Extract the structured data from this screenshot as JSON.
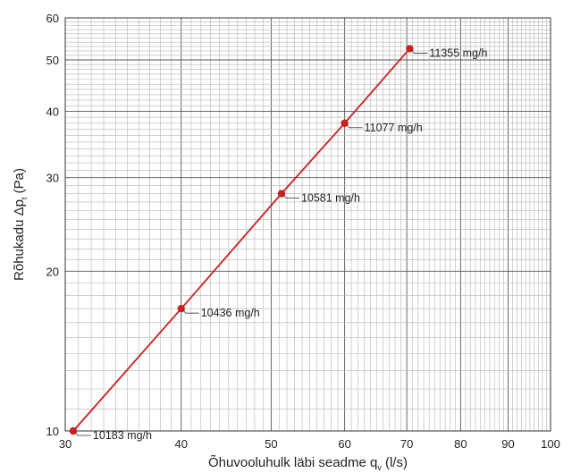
{
  "chart_data": {
    "type": "line",
    "xlabel": "Õhuvooluhulk läbi seadme q",
    "xlabel_sub": "v",
    "xlabel_unit": " (l/s)",
    "ylabel": "Rõhukadu Δp",
    "ylabel_sub": "t",
    "ylabel_unit": " (Pa)",
    "x_scale": "log",
    "y_scale": "log",
    "xlim": [
      30,
      100
    ],
    "ylim": [
      10,
      60
    ],
    "x_ticks": [
      30,
      40,
      50,
      60,
      70,
      80,
      90,
      100
    ],
    "y_ticks": [
      10,
      20,
      30,
      40,
      50,
      60
    ],
    "grid": true,
    "line_color": "#cc1f1f",
    "series": [
      {
        "x": [
          30.6,
          40,
          51.3,
          60,
          70.5
        ],
        "y": [
          10,
          17,
          28,
          38,
          52.5
        ],
        "labels": [
          "10183 mg/h",
          "10436 mg/h",
          "10581 mg/h",
          "11077 mg/h",
          "11355 mg/h"
        ]
      }
    ]
  }
}
